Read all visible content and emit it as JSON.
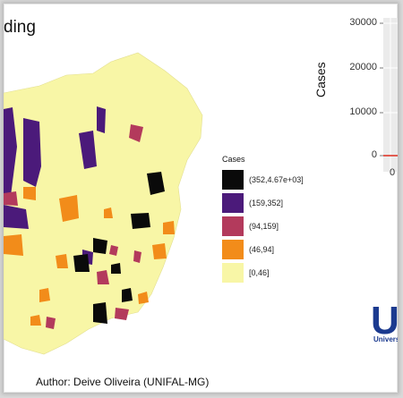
{
  "title": "ding",
  "legend": {
    "title": "Cases",
    "items": [
      {
        "label": "(352,4.67e+03]",
        "color": "#0a0a0a"
      },
      {
        "label": "(159,352]",
        "color": "#4b1a7a"
      },
      {
        "label": "(94,159]",
        "color": "#b33a5c"
      },
      {
        "label": "(46,94]",
        "color": "#f28c1a"
      },
      {
        "label": "[0,46]",
        "color": "#f8f6a6"
      }
    ]
  },
  "plot": {
    "y_label": "Cases",
    "y_ticks": [
      "30000",
      "20000",
      "10000",
      "0"
    ],
    "x_ticks": [
      "0"
    ]
  },
  "logo": {
    "text": "Un",
    "subtitle": "Universid"
  },
  "author": "Author: Deive Oliveira (UNIFAL-MG)",
  "colors": {
    "base": "#f8f6a6",
    "dark": "#0a0a0a",
    "purple": "#4b1a7a",
    "magenta": "#b33a5c",
    "orange": "#f28c1a",
    "line": "#e0392b"
  }
}
